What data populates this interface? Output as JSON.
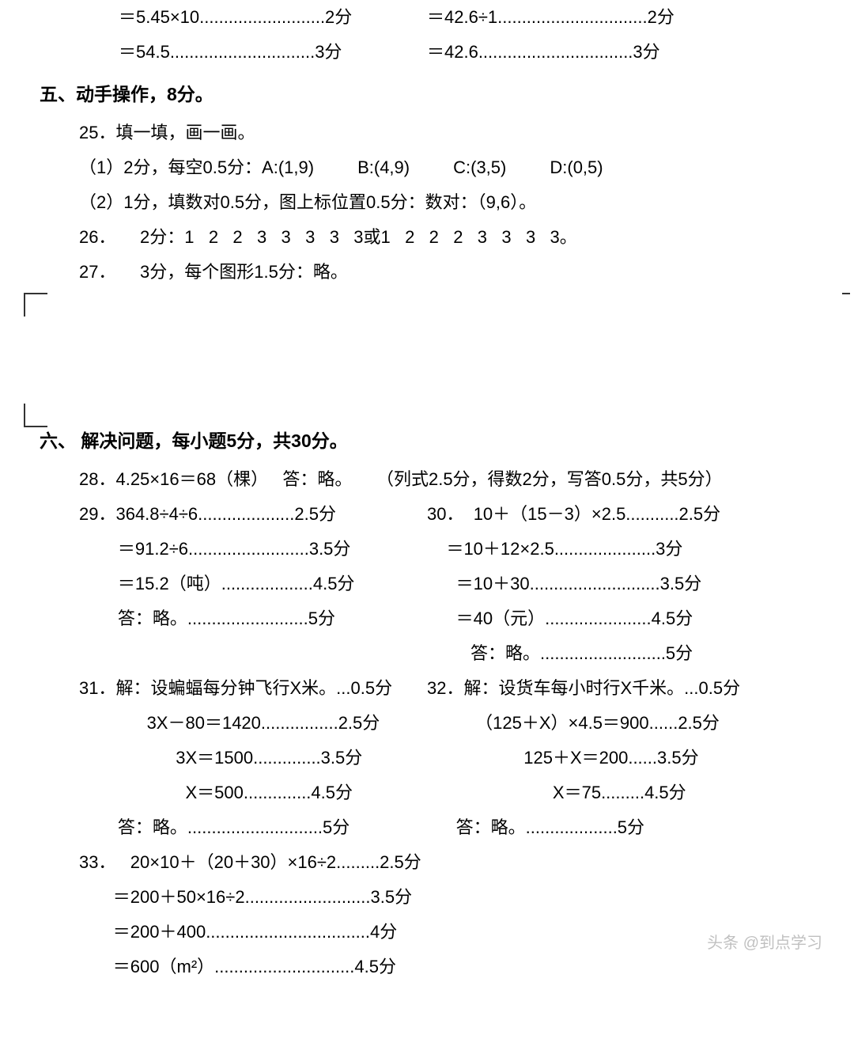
{
  "top": {
    "l1": "＝5.45×10..........................2分",
    "r1": "＝42.6÷1...............................2分",
    "l2": "＝54.5..............................3分",
    "r2": "＝42.6................................3分"
  },
  "sec5": {
    "title": "五、动手操作，8分。",
    "q25": {
      "head": "25．填一填，画一画。",
      "p1": "（1）2分，每空0.5分：A:(1,9)         B:(4,9)         C:(3,5)         D:(0,5)",
      "p2": "（2）1分，填数对0.5分，图上标位置0.5分：数对：（9,6）。"
    },
    "q26": "26．     2分：1   2   2   3   3   3   3   3或1   2   2   2   3   3   3   3。",
    "q27": "27．     3分，每个图形1.5分：略。"
  },
  "sec6": {
    "title": "六、  解决问题，每小题5分，共30分。",
    "q28": "28．4.25×16＝68（棵）   答：略。     （列式2.5分，得数2分，写答0.5分，共5分）",
    "q29": {
      "a": "29．364.8÷4÷6....................2.5分",
      "b": "        ＝91.2÷6.........................3.5分",
      "c": "        ＝15.2（吨）...................4.5分",
      "d": "        答：略。.........................5分"
    },
    "q30": {
      "a": "30．  10＋（15－3）×2.5...........2.5分",
      "b": "    ＝10＋12×2.5.....................3分",
      "c": "      ＝10＋30...........................3.5分",
      "d": "      ＝40（元）......................4.5分",
      "e": "         答：略。..........................5分"
    },
    "q31": {
      "a": "31．解：设蝙蝠每分钟飞行X米。...0.5分",
      "b": "              3X－80＝1420................2.5分",
      "c": "                    3X＝1500..............3.5分",
      "d": "                      X＝500..............4.5分",
      "e": "        答：略。............................5分"
    },
    "q32": {
      "a": "32．解：设货车每小时行X千米。...0.5分",
      "b": "          （125＋X）×4.5＝900......2.5分",
      "c": "                    125＋X＝200......3.5分",
      "d": "                          X＝75.........4.5分",
      "e": "      答：略。...................5分"
    },
    "q33": {
      "a": "33．   20×10＋（20＋30）×16÷2.........2.5分",
      "b": "       ＝200＋50×16÷2..........................3.5分",
      "c": "       ＝200＋400..................................4分",
      "d": "       ＝600（m²）.............................4.5分"
    }
  },
  "watermark": "头条 @到点学习"
}
